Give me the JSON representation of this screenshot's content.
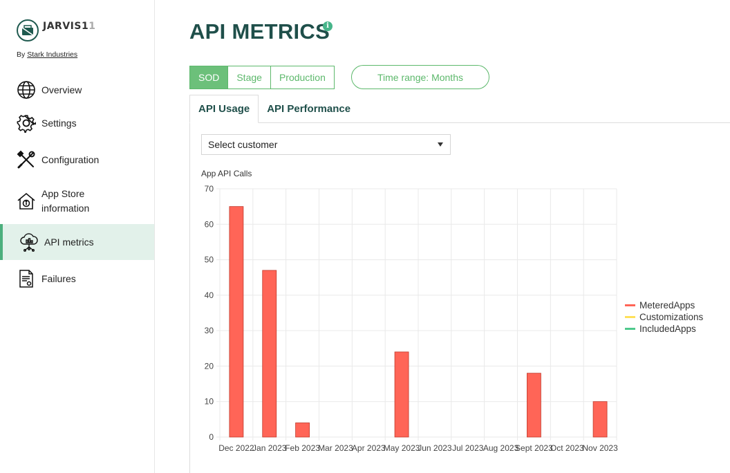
{
  "brand": {
    "name_main": "JARVIS1",
    "name_tail": "1",
    "by_prefix": "By",
    "by_company": "Stark Industries"
  },
  "sidebar": {
    "items": [
      {
        "label": "Overview",
        "icon": "globe-icon"
      },
      {
        "label": "Settings",
        "icon": "gear-icon"
      },
      {
        "label": "Configuration",
        "icon": "tools-icon"
      },
      {
        "label": "App Store information",
        "icon": "store-info-icon"
      },
      {
        "label": "API metrics",
        "icon": "cloud-chart-icon",
        "active": true
      },
      {
        "label": "Failures",
        "icon": "document-icon"
      }
    ]
  },
  "page": {
    "title": "API METRICS",
    "info_icon": "i"
  },
  "environments": [
    "SOD",
    "Stage",
    "Production"
  ],
  "environment_active": "SOD",
  "time_range": "Time range: Months",
  "tabs": [
    "API Usage",
    "API Performance"
  ],
  "tab_active": "API Usage",
  "customer_select": {
    "value": "Select customer"
  },
  "colors": {
    "accent": "#5cb86b",
    "title": "#1f4f4a",
    "metered": "#ff6557",
    "customizations": "#ffe05a",
    "included": "#4ec98c"
  },
  "chart_data": {
    "type": "bar",
    "title": "App API Calls",
    "categories": [
      "Dec 2022",
      "Jan 2023",
      "Feb 2023",
      "Mar 2023",
      "Apr 2023",
      "May 2023",
      "Jun 2023",
      "Jul 2023",
      "Aug 2023",
      "Sept 2023",
      "Oct 2023",
      "Nov 2023"
    ],
    "series": [
      {
        "name": "MeteredApps",
        "color": "#ff6557",
        "values": [
          65,
          47,
          4,
          0,
          0,
          24,
          0,
          0,
          0,
          18,
          0,
          10
        ]
      },
      {
        "name": "Customizations",
        "color": "#ffe05a",
        "values": [
          0,
          0,
          0,
          0,
          0,
          0,
          0,
          0,
          0,
          0,
          0,
          0
        ]
      },
      {
        "name": "IncludedApps",
        "color": "#4ec98c",
        "values": [
          0,
          0,
          0,
          0,
          0,
          0,
          0,
          0,
          0,
          0,
          0,
          0
        ]
      }
    ],
    "ylim": [
      0,
      70
    ],
    "yticks": [
      0,
      10,
      20,
      30,
      40,
      50,
      60,
      70
    ],
    "grid": true,
    "legend": "right"
  }
}
